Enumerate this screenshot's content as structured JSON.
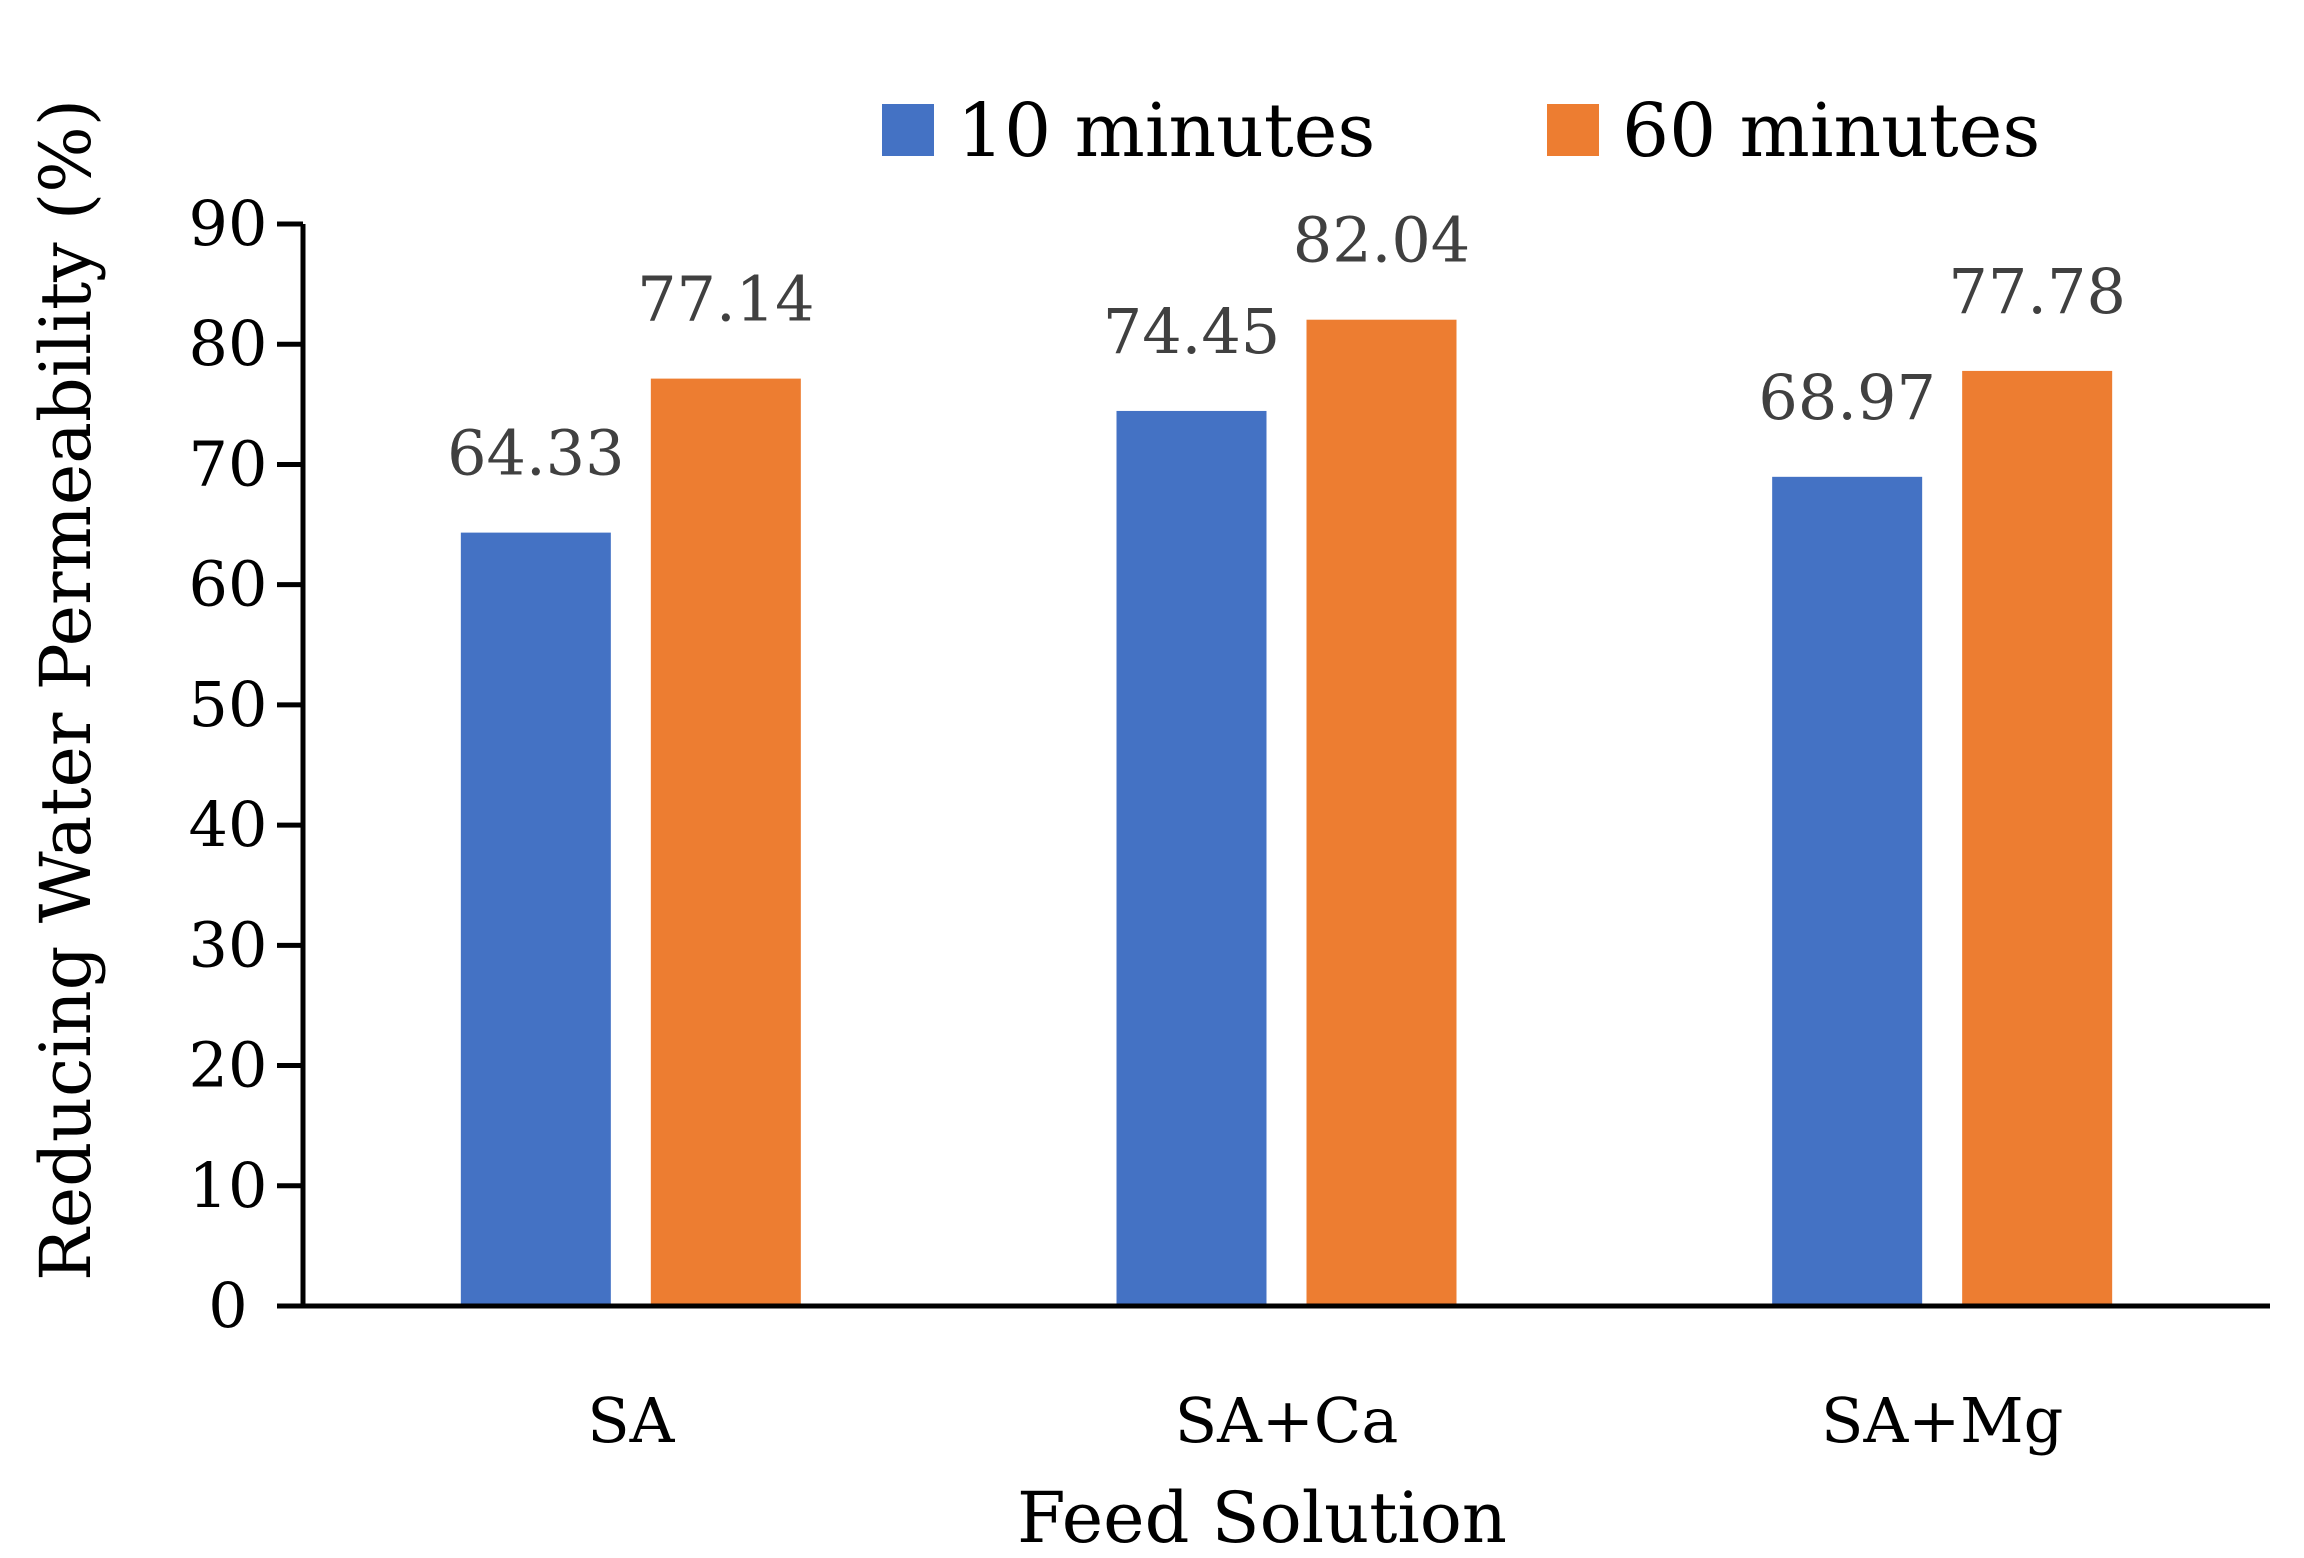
{
  "chart_data": {
    "type": "bar",
    "title": "",
    "xlabel": "Feed Solution",
    "ylabel": "Reducing Water Permeability (%)",
    "categories": [
      "SA",
      "SA+Ca",
      "SA+Mg"
    ],
    "series": [
      {
        "name": "10 minutes",
        "color": "#4472C4",
        "values": [
          64.33,
          74.45,
          68.97
        ],
        "labels": [
          "64.33",
          "74.45",
          "68.97"
        ]
      },
      {
        "name": "60 minutes",
        "color": "#ED7D31",
        "values": [
          77.14,
          82.04,
          77.78
        ],
        "labels": [
          "77.14",
          "82.04",
          "77.78"
        ]
      }
    ],
    "ylim": [
      0,
      90
    ],
    "yticks": [
      0,
      10,
      20,
      30,
      40,
      50,
      60,
      70,
      80,
      90
    ],
    "grid": false,
    "legend_position": "top-right"
  }
}
